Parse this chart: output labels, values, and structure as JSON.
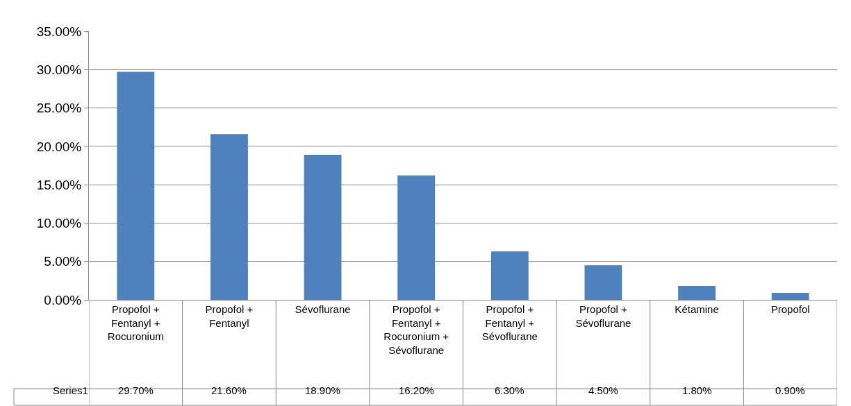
{
  "chart_data": {
    "type": "bar",
    "categories": [
      "Propofol + Fentanyl + Rocuronium",
      "Propofol + Fentanyl",
      "Sévoflurane",
      "Propofol + Fentanyl + Rocuronium + Sévoflurane",
      "Propofol + Fentanyl + Sévoflurane",
      "Propofol + Sévoflurane",
      "Kétamine",
      "Propofol"
    ],
    "series": [
      {
        "name": "Series1",
        "color": "#4f81bd",
        "values": [
          29.7,
          21.6,
          18.9,
          16.2,
          6.3,
          4.5,
          1.8,
          0.9
        ],
        "value_labels": [
          "29.70%",
          "21.60%",
          "18.90%",
          "16.20%",
          "6.30%",
          "4.50%",
          "1.80%",
          "0.90%"
        ]
      }
    ],
    "ylim": [
      0,
      35
    ],
    "yticks": [
      {
        "value": 0,
        "label": "0.00%"
      },
      {
        "value": 5,
        "label": "5.00%"
      },
      {
        "value": 10,
        "label": "10.00%"
      },
      {
        "value": 15,
        "label": "15.00%"
      },
      {
        "value": 20,
        "label": "20.00%"
      },
      {
        "value": 25,
        "label": "25.00%"
      },
      {
        "value": 30,
        "label": "30.00%"
      },
      {
        "value": 35,
        "label": "35.00%"
      }
    ],
    "grid": "y",
    "legend": false
  }
}
